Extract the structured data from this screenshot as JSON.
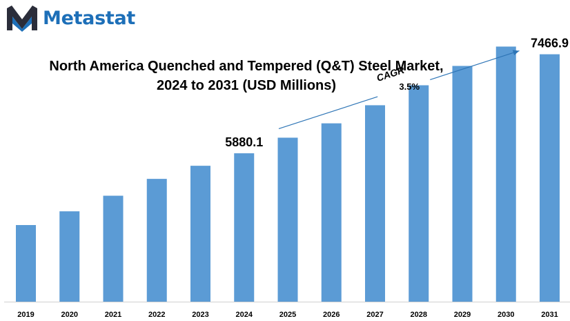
{
  "brand": {
    "name": "Metastat",
    "color": "#1d6fb8",
    "icon": "metastat-m-logo-icon"
  },
  "chart_data": {
    "type": "bar",
    "title_lines": [
      "North America Quenched and Tempered (Q&T) Steel Market,",
      "2024 to 2031 (USD Millions)"
    ],
    "categories": [
      "2019",
      "2020",
      "2021",
      "2022",
      "2023",
      "2024",
      "2025",
      "2026",
      "2027",
      "2028",
      "2029",
      "2030",
      "2031"
    ],
    "values": [
      4730,
      4950,
      5200,
      5470,
      5680,
      5880.1,
      6130,
      6360,
      6650,
      6970,
      7280,
      7590,
      7466.9
    ],
    "bar_color": "#5b9bd5",
    "data_labels": [
      {
        "category": "2024",
        "text": "5880.1"
      },
      {
        "category": "2031",
        "text": "7466.9"
      }
    ],
    "annotation": {
      "label_line1": "CAGR",
      "label_line2": "3.5%",
      "from_category": "2025",
      "to_category": "2031"
    },
    "xlabel": "",
    "ylabel": "",
    "grid": false,
    "legend": "none"
  }
}
